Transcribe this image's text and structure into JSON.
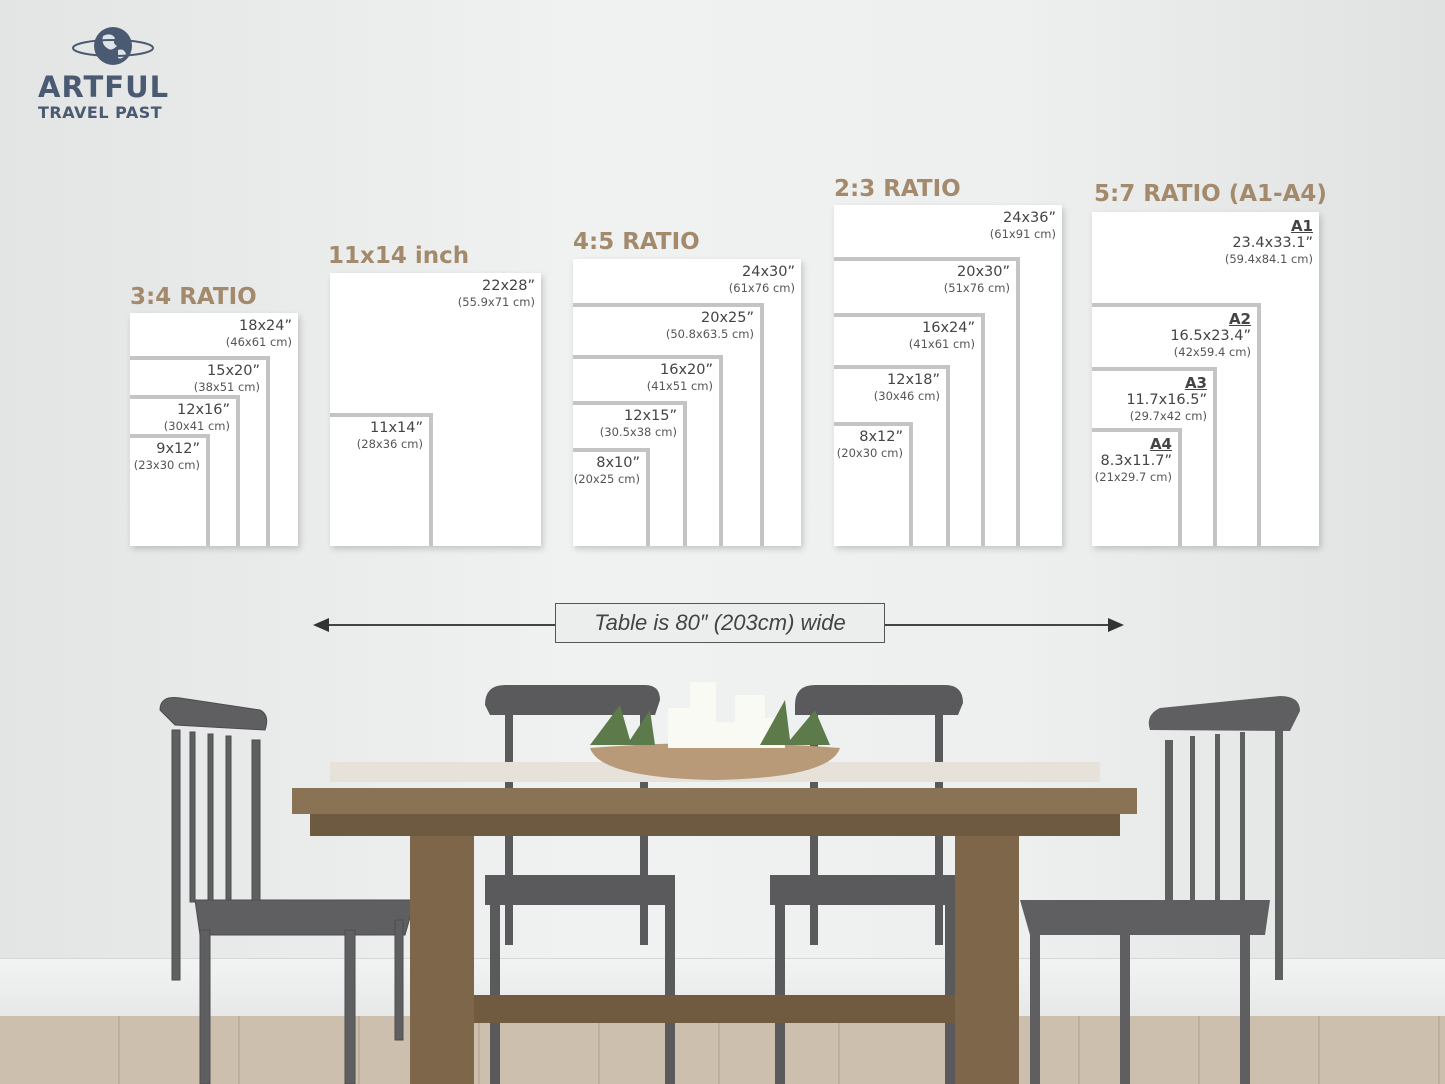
{
  "logo": {
    "title": "ARTFUL",
    "subtitle": "TRAVEL PAST",
    "icon": "globe-icon",
    "color": "#4a5a72"
  },
  "accent_color": "#a48a6c",
  "groups": [
    {
      "title": "3:4 RATIO",
      "sizes": [
        {
          "inch": "18x24”",
          "cm": "(46x61 cm)"
        },
        {
          "inch": "15x20”",
          "cm": "(38x51 cm)"
        },
        {
          "inch": "12x16”",
          "cm": "(30x41 cm)"
        },
        {
          "inch": "9x12”",
          "cm": "(23x30 cm)"
        }
      ]
    },
    {
      "title": "11x14 inch",
      "sizes": [
        {
          "inch": "22x28”",
          "cm": "(55.9x71 cm)"
        },
        {
          "inch": "11x14”",
          "cm": "(28x36 cm)"
        }
      ]
    },
    {
      "title": "4:5 RATIO",
      "sizes": [
        {
          "inch": "24x30”",
          "cm": "(61x76 cm)"
        },
        {
          "inch": "20x25”",
          "cm": "(50.8x63.5 cm)"
        },
        {
          "inch": "16x20”",
          "cm": "(41x51 cm)"
        },
        {
          "inch": "12x15”",
          "cm": "(30.5x38 cm)"
        },
        {
          "inch": "8x10”",
          "cm": "(20x25 cm)"
        }
      ]
    },
    {
      "title": "2:3 RATIO",
      "sizes": [
        {
          "inch": "24x36”",
          "cm": "(61x91 cm)"
        },
        {
          "inch": "20x30”",
          "cm": "(51x76 cm)"
        },
        {
          "inch": "16x24”",
          "cm": "(41x61 cm)"
        },
        {
          "inch": "12x18”",
          "cm": "(30x46 cm)"
        },
        {
          "inch": "8x12”",
          "cm": "(20x30 cm)"
        }
      ]
    },
    {
      "title": "5:7 RATIO (A1-A4)",
      "sizes": [
        {
          "name": "A1",
          "inch": "23.4x33.1”",
          "cm": "(59.4x84.1 cm)"
        },
        {
          "name": "A2",
          "inch": "16.5x23.4”",
          "cm": "(42x59.4 cm)"
        },
        {
          "name": "A3",
          "inch": "11.7x16.5”",
          "cm": "(29.7x42 cm)"
        },
        {
          "name": "A4",
          "inch": "8.3x11.7”",
          "cm": "(21x29.7 cm)"
        }
      ]
    }
  ],
  "table_note": "Table is 80″ (203cm) wide"
}
